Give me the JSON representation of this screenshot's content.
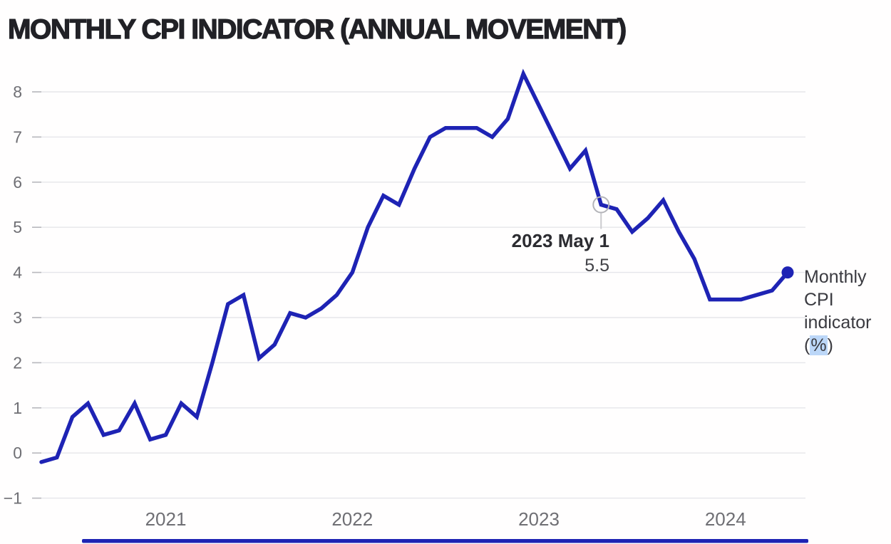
{
  "page": {
    "title": "MONTHLY CPI INDICATOR (ANNUAL MOVEMENT)"
  },
  "colors": {
    "line": "#1e23b4",
    "grid": "#e6e6ea",
    "tick_stub": "#b8b8bd",
    "axis_label": "#6f6f74",
    "marker_ring": "#b3b3b8",
    "connector": "#cbcbcf"
  },
  "chart_data": {
    "type": "line",
    "title": "MONTHLY CPI INDICATOR (ANNUAL MOVEMENT)",
    "xlabel": "",
    "ylabel": "Monthly CPI indicator (%)",
    "ylim": [
      -1,
      8.6
    ],
    "grid": "horizontal",
    "legend_position": "right-end-inline-label",
    "y_ticks": [
      8,
      7,
      6,
      5,
      4,
      3,
      2,
      1,
      0,
      -1
    ],
    "y_tick_labels": [
      "8",
      "7",
      "6",
      "5",
      "4",
      "3",
      "2",
      "1",
      "0",
      "−1"
    ],
    "x_tick_labels": [
      "2021",
      "2022",
      "2023",
      "2024"
    ],
    "months": [
      "2020-05",
      "2020-06",
      "2020-07",
      "2020-08",
      "2020-09",
      "2020-10",
      "2020-11",
      "2020-12",
      "2021-01",
      "2021-02",
      "2021-03",
      "2021-04",
      "2021-05",
      "2021-06",
      "2021-07",
      "2021-08",
      "2021-09",
      "2021-10",
      "2021-11",
      "2021-12",
      "2022-01",
      "2022-02",
      "2022-03",
      "2022-04",
      "2022-05",
      "2022-06",
      "2022-07",
      "2022-08",
      "2022-09",
      "2022-10",
      "2022-11",
      "2022-12",
      "2023-01",
      "2023-02",
      "2023-03",
      "2023-04",
      "2023-05",
      "2023-06",
      "2023-07",
      "2023-08",
      "2023-09",
      "2023-10",
      "2023-11",
      "2023-12",
      "2024-01",
      "2024-02",
      "2024-03",
      "2024-04",
      "2024-05"
    ],
    "values": [
      -0.2,
      -0.1,
      0.8,
      1.1,
      0.4,
      0.5,
      1.1,
      0.3,
      0.4,
      1.1,
      0.8,
      2.0,
      3.3,
      3.5,
      2.1,
      2.4,
      3.1,
      3.0,
      3.2,
      3.5,
      4.0,
      5.0,
      5.7,
      5.5,
      6.3,
      7.0,
      7.2,
      7.2,
      7.2,
      7.0,
      7.4,
      8.4,
      7.7,
      7.0,
      6.3,
      6.7,
      5.5,
      5.4,
      4.9,
      5.2,
      5.6,
      4.9,
      4.3,
      3.4,
      3.4,
      3.4,
      3.5,
      3.6,
      4.0
    ],
    "tooltip": {
      "label": "2023 May 1",
      "value": "5.5",
      "month_index": 36
    },
    "end_dot": {
      "month": "2024-05",
      "value": 4.0
    },
    "series_annotation": {
      "lines": [
        "Monthly",
        "CPI",
        "indicator"
      ],
      "unit_open": "(",
      "unit": "%",
      "unit_close": ")"
    }
  }
}
